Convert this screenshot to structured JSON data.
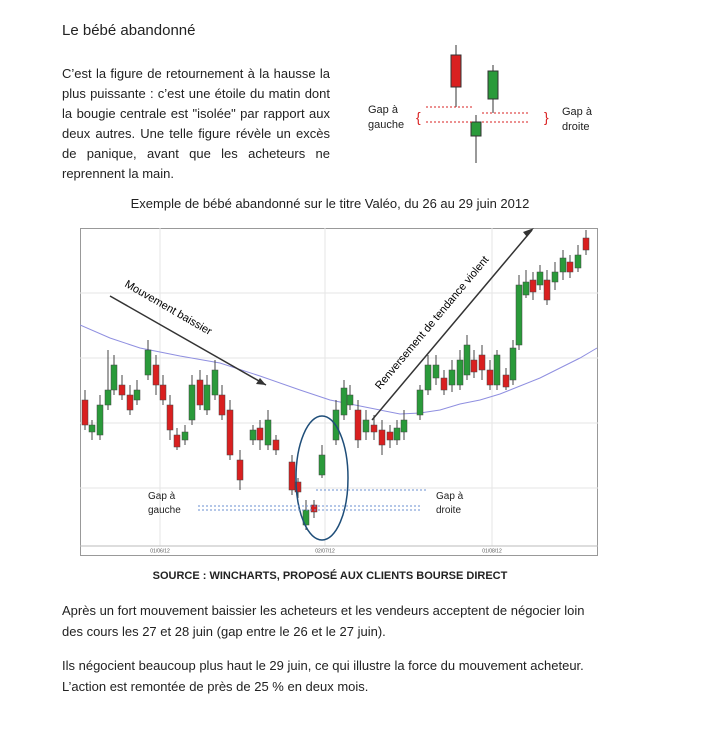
{
  "title": "Le bébé abandonné",
  "intro": "C’est la figure de retournement à la hausse la plus puissante : c’est une étoile du matin dont la bougie centrale est \"isolée\" par rapport aux deux autres. Une telle figure révèle un excès de panique, avant que les acheteurs ne reprennent la main.",
  "diagram": {
    "gap_left": "Gap à gauche",
    "gap_right": "Gap à droite"
  },
  "caption": "Exemple de bébé abandonné sur le titre Valéo, du 26 au 29 juin 2012",
  "chart": {
    "downtrend": "Mouvement baissier",
    "reversal": "Renversement de tendance violent",
    "gap_left": "Gap à gauche",
    "gap_right": "Gap à droite",
    "dates": [
      "01/06/12",
      "02/07/12",
      "01/08/12"
    ]
  },
  "source": "SOURCE : WINCHARTS, PROPOSÉ AUX CLIENTS BOURSE DIRECT",
  "paragraphs": [
    "Après un fort mouvement baissier les acheteurs et les vendeurs acceptent de négocier loin des cours les 27 et 28 juin (gap entre le 26 et le 27 juin).",
    "Ils négocient beaucoup plus haut le 29 juin, ce qui illustre la force du mouvement acheteur. L’action est remontée de près de 25 % en deux mois."
  ]
}
